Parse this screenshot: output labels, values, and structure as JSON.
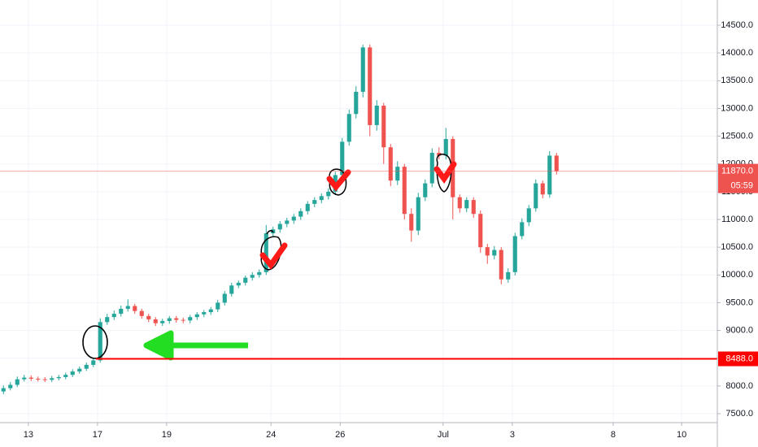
{
  "chart_data": {
    "type": "candlestick",
    "open": [
      7900,
      7960,
      8020,
      8120,
      8150,
      8130,
      8120,
      8110,
      8140,
      8160,
      8200,
      8260,
      8310,
      8380,
      8460,
      9150,
      9240,
      9300,
      9390,
      9440,
      9350,
      9260,
      9200,
      9130,
      9170,
      9220,
      9190,
      9180,
      9240,
      9290,
      9330,
      9380,
      9500,
      9660,
      9810,
      9860,
      9950,
      10000,
      10050,
      10750,
      10820,
      10920,
      10980,
      11050,
      11150,
      11280,
      11350,
      11420,
      11500,
      11800,
      12400,
      12900,
      13300,
      14100,
      12700,
      13050,
      12300,
      11700,
      11950,
      11100,
      10800,
      11400,
      11650,
      12200,
      12150,
      12450,
      11400,
      11200,
      11350,
      11100,
      10500,
      10350,
      10450,
      9920,
      10050,
      10700,
      10950,
      11200,
      11650,
      11450,
      12150
    ],
    "high": [
      8010,
      8070,
      8170,
      8200,
      8190,
      8170,
      8160,
      8180,
      8200,
      8240,
      8300,
      8350,
      8420,
      8500,
      9220,
      9300,
      9360,
      9450,
      9560,
      9480,
      9390,
      9300,
      9240,
      9210,
      9260,
      9260,
      9230,
      9280,
      9330,
      9370,
      9420,
      9550,
      9710,
      9860,
      9900,
      9990,
      10050,
      10100,
      10900,
      10870,
      10970,
      11030,
      11100,
      11200,
      11330,
      11400,
      11470,
      11560,
      11860,
      12470,
      12980,
      13400,
      14150,
      14150,
      13150,
      13100,
      12360,
      12050,
      12000,
      11200,
      11480,
      11720,
      12280,
      12300,
      12650,
      12500,
      11450,
      11400,
      11400,
      11160,
      10560,
      10520,
      10500,
      10120,
      10760,
      11020,
      11260,
      11720,
      11700,
      12230,
      12200
    ],
    "low": [
      7850,
      7920,
      7980,
      8080,
      8090,
      8080,
      8070,
      8070,
      8100,
      8120,
      8160,
      8220,
      8270,
      8340,
      8420,
      9100,
      9190,
      9250,
      9340,
      9300,
      9210,
      9150,
      9080,
      9080,
      9120,
      9140,
      9130,
      9130,
      9190,
      9240,
      9280,
      9330,
      9450,
      9610,
      9760,
      9810,
      9900,
      9950,
      10000,
      10680,
      10760,
      10860,
      10920,
      10990,
      11090,
      11220,
      11290,
      11360,
      11440,
      11740,
      12330,
      12820,
      13200,
      12500,
      12600,
      12000,
      11600,
      11620,
      11000,
      10600,
      10720,
      11330,
      11580,
      12080,
      12080,
      11000,
      11120,
      11130,
      11030,
      10400,
      10200,
      10280,
      9830,
      9860,
      9990,
      10640,
      10880,
      11140,
      11380,
      11390,
      11810
    ],
    "close": [
      7960,
      8020,
      8120,
      8150,
      8130,
      8120,
      8110,
      8140,
      8160,
      8200,
      8260,
      8310,
      8380,
      8460,
      9150,
      9240,
      9300,
      9390,
      9440,
      9350,
      9260,
      9200,
      9130,
      9170,
      9220,
      9190,
      9180,
      9240,
      9290,
      9330,
      9380,
      9500,
      9660,
      9810,
      9860,
      9950,
      10000,
      10050,
      10750,
      10820,
      10920,
      10980,
      11050,
      11150,
      11280,
      11350,
      11420,
      11500,
      11800,
      12400,
      12900,
      13300,
      14100,
      12700,
      13050,
      12300,
      11700,
      11950,
      11100,
      10800,
      11400,
      11650,
      12200,
      12150,
      12450,
      11400,
      11200,
      11350,
      11100,
      10500,
      10350,
      10450,
      9920,
      10050,
      10700,
      10950,
      11200,
      11650,
      11450,
      12150,
      11870
    ],
    "up_color": "#26a69a",
    "down_color": "#ef5350",
    "xlim": [
      -0.5,
      103.26
    ],
    "xticks": [
      {
        "value": 3.6,
        "label": "13"
      },
      {
        "value": 13.6,
        "label": "17"
      },
      {
        "value": 23.6,
        "label": "19"
      },
      {
        "value": 38.7,
        "label": "24"
      },
      {
        "value": 48.7,
        "label": "26"
      },
      {
        "value": 63.6,
        "label": "Jul"
      },
      {
        "value": 73.6,
        "label": "3"
      },
      {
        "value": 88.2,
        "label": "8"
      },
      {
        "value": 98.1,
        "label": "10"
      }
    ],
    "ylim": [
      7339,
      14954
    ],
    "yticks": [
      {
        "value": 7500,
        "label": "7500.0"
      },
      {
        "value": 8000,
        "label": "8000.0"
      },
      {
        "value": 8500,
        "label": "8500.0"
      },
      {
        "value": 9000,
        "label": "9000.0"
      },
      {
        "value": 9500,
        "label": "9500.0"
      },
      {
        "value": 10000,
        "label": "10000.0"
      },
      {
        "value": 10500,
        "label": "10500.0"
      },
      {
        "value": 11000,
        "label": "11000.0"
      },
      {
        "value": 11500,
        "label": "11500.0"
      },
      {
        "value": 12000,
        "label": "12000.0"
      },
      {
        "value": 12500,
        "label": "12500.0"
      },
      {
        "value": 13000,
        "label": "13000.0"
      },
      {
        "value": 13500,
        "label": "13500.0"
      },
      {
        "value": 14000,
        "label": "14000.0"
      },
      {
        "value": 14500,
        "label": "14500.0"
      }
    ],
    "grid": true,
    "horizontal_line": {
      "value": 8488,
      "label": "8488.0",
      "color": "#ff0000"
    },
    "last_price": {
      "value": 11870,
      "label": "11870.0",
      "countdown": "05:59",
      "color": "#ef5350"
    }
  }
}
